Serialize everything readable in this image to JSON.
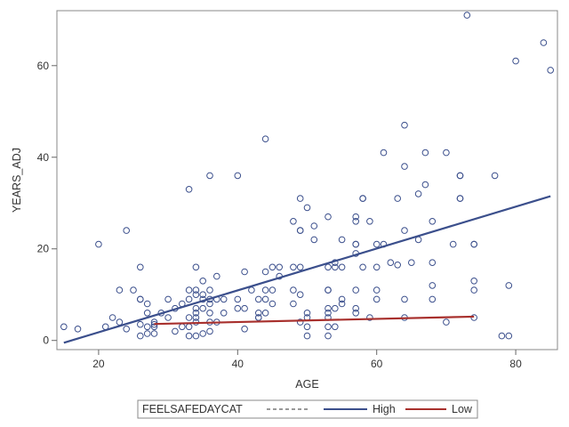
{
  "chart_data": {
    "type": "scatter",
    "xlabel": "AGE",
    "ylabel": "YEARS_ADJ",
    "xlim": [
      14,
      86
    ],
    "ylim": [
      -2,
      72
    ],
    "x_ticks": [
      20,
      40,
      60,
      80
    ],
    "y_ticks": [
      0,
      20,
      40,
      60
    ],
    "grid": false,
    "legend": {
      "title": "FEELSAFEDAYCAT",
      "placement": "bottom",
      "entries": [
        {
          "label": "",
          "style": "dashed",
          "color": "#999999"
        },
        {
          "label": "High",
          "style": "solid",
          "color": "#3b4f8c"
        },
        {
          "label": "Low",
          "style": "solid",
          "color": "#a8302d"
        }
      ]
    },
    "marker_color": "#3b4f8c",
    "series": [
      {
        "name": "High",
        "kind": "fit-line",
        "color": "#3b4f8c",
        "x": [
          15,
          85
        ],
        "y": [
          -0.5,
          31.5
        ]
      },
      {
        "name": "Low",
        "kind": "fit-line",
        "color": "#a8302d",
        "x": [
          28,
          74
        ],
        "y": [
          3.6,
          5.2
        ]
      }
    ],
    "points": [
      {
        "x": 15,
        "y": 3
      },
      {
        "x": 17,
        "y": 2.5
      },
      {
        "x": 20,
        "y": 21
      },
      {
        "x": 21,
        "y": 3
      },
      {
        "x": 22,
        "y": 5
      },
      {
        "x": 23,
        "y": 11
      },
      {
        "x": 23,
        "y": 4
      },
      {
        "x": 24,
        "y": 24
      },
      {
        "x": 24,
        "y": 2.5
      },
      {
        "x": 25,
        "y": 11
      },
      {
        "x": 26,
        "y": 16
      },
      {
        "x": 26,
        "y": 9
      },
      {
        "x": 26,
        "y": 9
      },
      {
        "x": 26,
        "y": 3.5
      },
      {
        "x": 26,
        "y": 1
      },
      {
        "x": 27,
        "y": 8
      },
      {
        "x": 27,
        "y": 6
      },
      {
        "x": 27,
        "y": 3
      },
      {
        "x": 27,
        "y": 1.5
      },
      {
        "x": 28,
        "y": 4
      },
      {
        "x": 28,
        "y": 3
      },
      {
        "x": 28,
        "y": 1.5
      },
      {
        "x": 29,
        "y": 6
      },
      {
        "x": 30,
        "y": 9
      },
      {
        "x": 30,
        "y": 5
      },
      {
        "x": 31,
        "y": 7
      },
      {
        "x": 31,
        "y": 2
      },
      {
        "x": 32,
        "y": 8
      },
      {
        "x": 32,
        "y": 3
      },
      {
        "x": 33,
        "y": 33
      },
      {
        "x": 33,
        "y": 11
      },
      {
        "x": 33,
        "y": 9
      },
      {
        "x": 33,
        "y": 5
      },
      {
        "x": 33,
        "y": 3
      },
      {
        "x": 33,
        "y": 1
      },
      {
        "x": 34,
        "y": 16
      },
      {
        "x": 34,
        "y": 11
      },
      {
        "x": 34,
        "y": 10
      },
      {
        "x": 34,
        "y": 7
      },
      {
        "x": 34,
        "y": 6
      },
      {
        "x": 34,
        "y": 5
      },
      {
        "x": 34,
        "y": 4
      },
      {
        "x": 34,
        "y": 1
      },
      {
        "x": 35,
        "y": 13
      },
      {
        "x": 35,
        "y": 10
      },
      {
        "x": 35,
        "y": 9
      },
      {
        "x": 35,
        "y": 7
      },
      {
        "x": 35,
        "y": 1.5
      },
      {
        "x": 36,
        "y": 36
      },
      {
        "x": 36,
        "y": 11
      },
      {
        "x": 36,
        "y": 9
      },
      {
        "x": 36,
        "y": 8
      },
      {
        "x": 36,
        "y": 6
      },
      {
        "x": 36,
        "y": 4
      },
      {
        "x": 36,
        "y": 2
      },
      {
        "x": 37,
        "y": 14
      },
      {
        "x": 37,
        "y": 9
      },
      {
        "x": 37,
        "y": 4
      },
      {
        "x": 38,
        "y": 9
      },
      {
        "x": 38,
        "y": 6
      },
      {
        "x": 40,
        "y": 36
      },
      {
        "x": 40,
        "y": 9
      },
      {
        "x": 40,
        "y": 7
      },
      {
        "x": 41,
        "y": 15
      },
      {
        "x": 41,
        "y": 7
      },
      {
        "x": 41,
        "y": 2.5
      },
      {
        "x": 42,
        "y": 11
      },
      {
        "x": 43,
        "y": 9
      },
      {
        "x": 43,
        "y": 6
      },
      {
        "x": 43,
        "y": 5
      },
      {
        "x": 44,
        "y": 44
      },
      {
        "x": 44,
        "y": 15
      },
      {
        "x": 44,
        "y": 11
      },
      {
        "x": 44,
        "y": 9
      },
      {
        "x": 44,
        "y": 6
      },
      {
        "x": 45,
        "y": 16
      },
      {
        "x": 45,
        "y": 11
      },
      {
        "x": 45,
        "y": 8
      },
      {
        "x": 46,
        "y": 16
      },
      {
        "x": 46,
        "y": 14
      },
      {
        "x": 48,
        "y": 26
      },
      {
        "x": 48,
        "y": 16
      },
      {
        "x": 48,
        "y": 11
      },
      {
        "x": 48,
        "y": 8
      },
      {
        "x": 49,
        "y": 31
      },
      {
        "x": 49,
        "y": 24
      },
      {
        "x": 49,
        "y": 24
      },
      {
        "x": 49,
        "y": 16
      },
      {
        "x": 49,
        "y": 10
      },
      {
        "x": 49,
        "y": 4
      },
      {
        "x": 50,
        "y": 29
      },
      {
        "x": 50,
        "y": 6
      },
      {
        "x": 50,
        "y": 5
      },
      {
        "x": 50,
        "y": 3
      },
      {
        "x": 50,
        "y": 1
      },
      {
        "x": 51,
        "y": 25
      },
      {
        "x": 51,
        "y": 22
      },
      {
        "x": 53,
        "y": 27
      },
      {
        "x": 53,
        "y": 16
      },
      {
        "x": 53,
        "y": 11
      },
      {
        "x": 53,
        "y": 11
      },
      {
        "x": 53,
        "y": 7
      },
      {
        "x": 53,
        "y": 6
      },
      {
        "x": 53,
        "y": 3
      },
      {
        "x": 53,
        "y": 1
      },
      {
        "x": 54,
        "y": 17
      },
      {
        "x": 54,
        "y": 16
      },
      {
        "x": 54,
        "y": 7
      },
      {
        "x": 54,
        "y": 3
      },
      {
        "x": 55,
        "y": 22
      },
      {
        "x": 55,
        "y": 16
      },
      {
        "x": 55,
        "y": 9
      },
      {
        "x": 55,
        "y": 8
      },
      {
        "x": 57,
        "y": 27
      },
      {
        "x": 57,
        "y": 26
      },
      {
        "x": 57,
        "y": 21
      },
      {
        "x": 57,
        "y": 21
      },
      {
        "x": 57,
        "y": 19
      },
      {
        "x": 57,
        "y": 11
      },
      {
        "x": 57,
        "y": 7
      },
      {
        "x": 57,
        "y": 6
      },
      {
        "x": 58,
        "y": 31
      },
      {
        "x": 58,
        "y": 31
      },
      {
        "x": 58,
        "y": 16
      },
      {
        "x": 59,
        "y": 26
      },
      {
        "x": 59,
        "y": 5
      },
      {
        "x": 60,
        "y": 21
      },
      {
        "x": 60,
        "y": 16
      },
      {
        "x": 60,
        "y": 11
      },
      {
        "x": 60,
        "y": 9
      },
      {
        "x": 61,
        "y": 41
      },
      {
        "x": 61,
        "y": 21
      },
      {
        "x": 62,
        "y": 17
      },
      {
        "x": 63,
        "y": 31
      },
      {
        "x": 63,
        "y": 16.5
      },
      {
        "x": 64,
        "y": 47
      },
      {
        "x": 64,
        "y": 38
      },
      {
        "x": 64,
        "y": 24
      },
      {
        "x": 64,
        "y": 9
      },
      {
        "x": 65,
        "y": 17
      },
      {
        "x": 66,
        "y": 32
      },
      {
        "x": 66,
        "y": 22
      },
      {
        "x": 67,
        "y": 41
      },
      {
        "x": 67,
        "y": 34
      },
      {
        "x": 68,
        "y": 26
      },
      {
        "x": 68,
        "y": 17
      },
      {
        "x": 68,
        "y": 12
      },
      {
        "x": 68,
        "y": 9
      },
      {
        "x": 70,
        "y": 41
      },
      {
        "x": 70,
        "y": 4
      },
      {
        "x": 71,
        "y": 21
      },
      {
        "x": 72,
        "y": 36
      },
      {
        "x": 72,
        "y": 36
      },
      {
        "x": 72,
        "y": 31
      },
      {
        "x": 72,
        "y": 31
      },
      {
        "x": 73,
        "y": 71
      },
      {
        "x": 74,
        "y": 21
      },
      {
        "x": 74,
        "y": 21
      },
      {
        "x": 74,
        "y": 13
      },
      {
        "x": 74,
        "y": 11
      },
      {
        "x": 77,
        "y": 36
      },
      {
        "x": 78,
        "y": 1
      },
      {
        "x": 79,
        "y": 12
      },
      {
        "x": 79,
        "y": 1
      },
      {
        "x": 80,
        "y": 61
      },
      {
        "x": 84,
        "y": 65
      },
      {
        "x": 85,
        "y": 59
      },
      {
        "x": 28,
        "y": 3.5
      },
      {
        "x": 43,
        "y": 5
      },
      {
        "x": 53,
        "y": 5
      },
      {
        "x": 64,
        "y": 5
      },
      {
        "x": 74,
        "y": 5
      }
    ]
  }
}
